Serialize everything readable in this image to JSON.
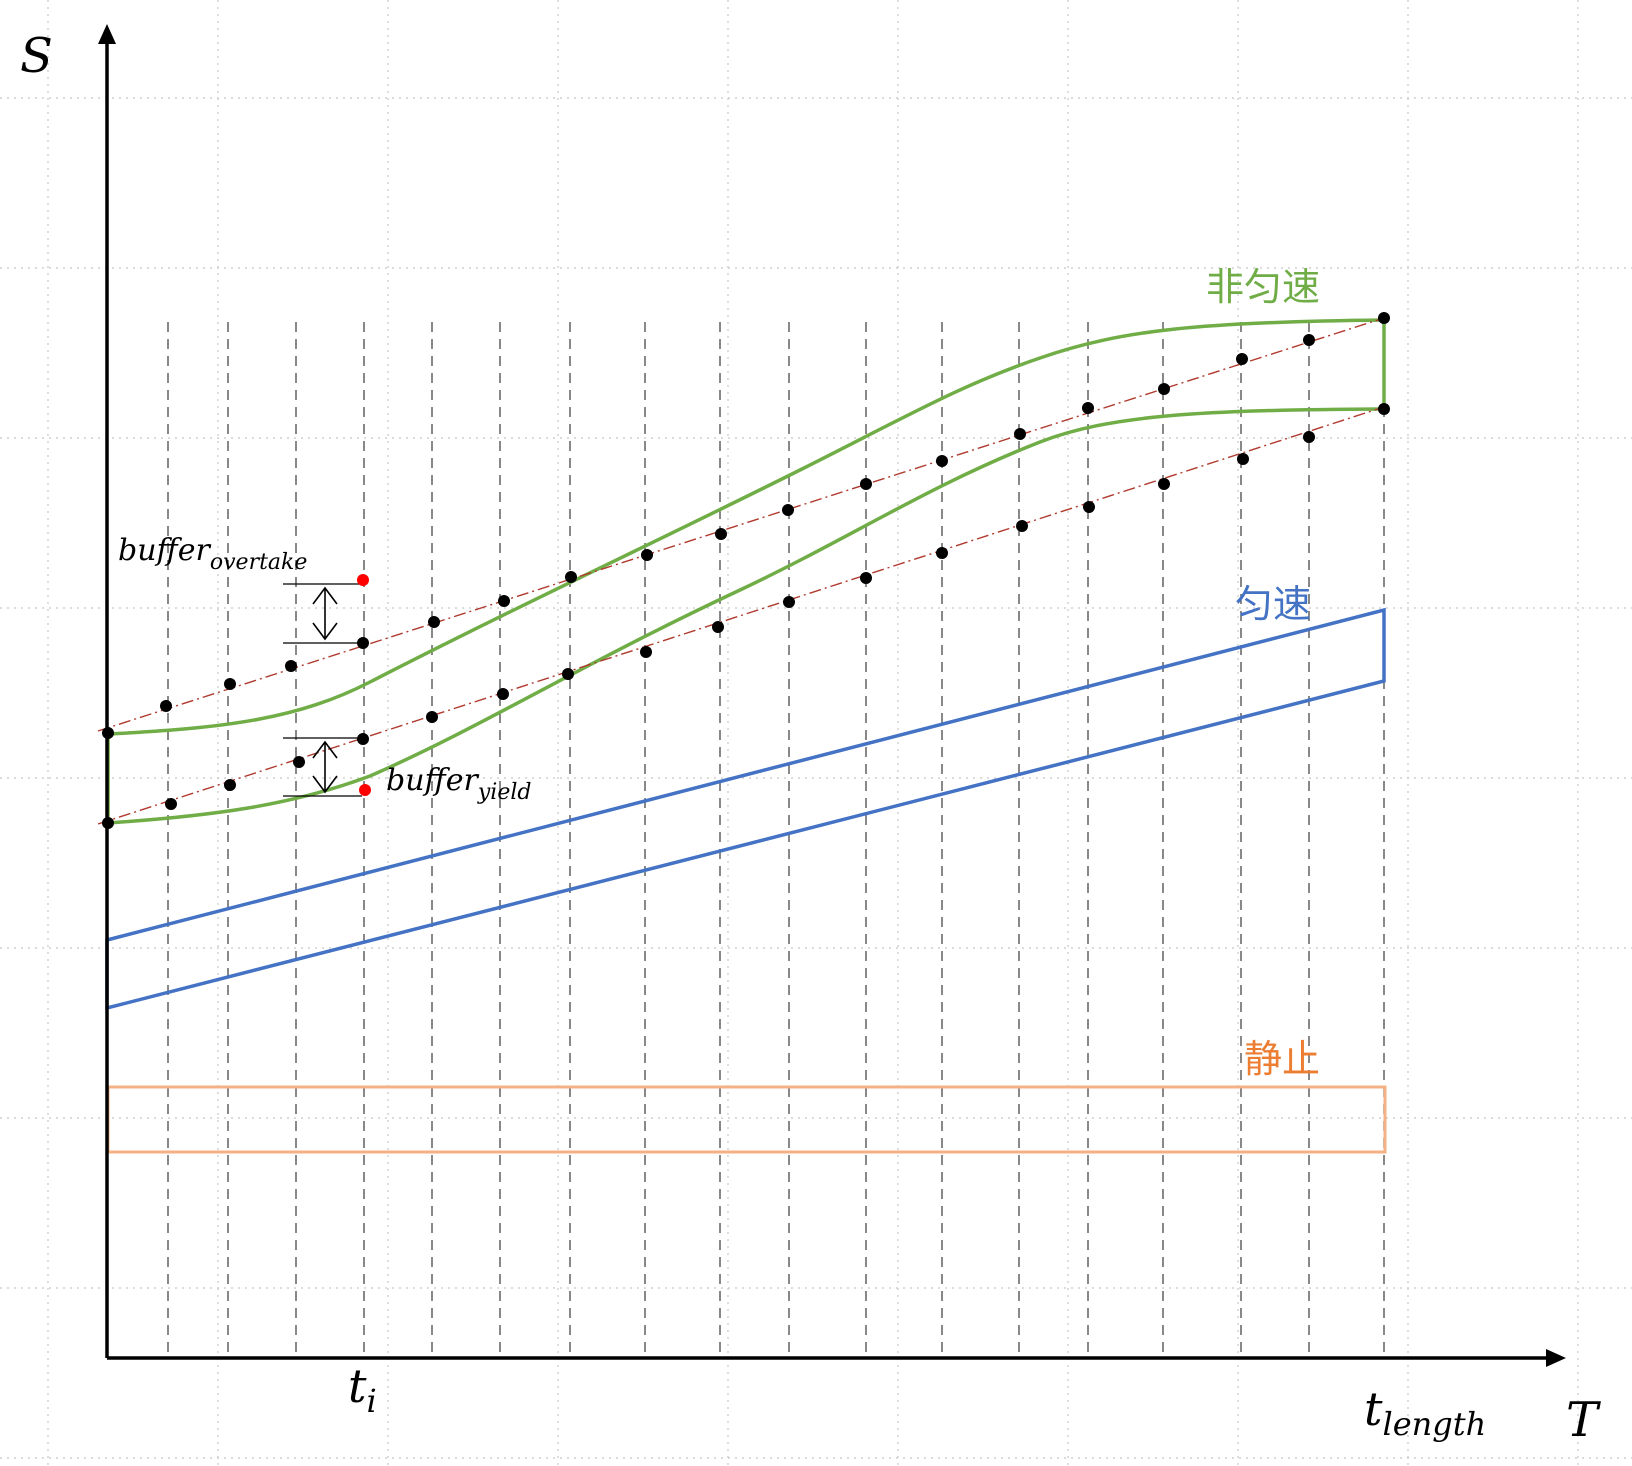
{
  "axes": {
    "y_label": "S",
    "x_label": "T",
    "tick_ti": {
      "main": "t",
      "sub": "i"
    },
    "tick_tlength": {
      "main": "t",
      "sub": "length"
    }
  },
  "annotations": {
    "buffer_overtake": {
      "main": "buffer",
      "sub": "overtake"
    },
    "buffer_yield": {
      "main": "buffer",
      "sub": "yield"
    }
  },
  "regions": {
    "non_uniform": {
      "label": "非匀速",
      "color": "#70ad47"
    },
    "uniform": {
      "label": "匀速",
      "color": "#4472c4"
    },
    "static": {
      "label": "静止",
      "color": "#f4b183"
    }
  },
  "colors": {
    "axis": "#000000",
    "grid": "#c8c8c8",
    "dashed_time_lines": "#555555",
    "reference_dash_dot": "#b03a2e",
    "sample_points": "#000000",
    "buffer_points": "#ff0000"
  },
  "icons": {
    "buffer_arrow": "double-headed-vertical-arrow"
  }
}
